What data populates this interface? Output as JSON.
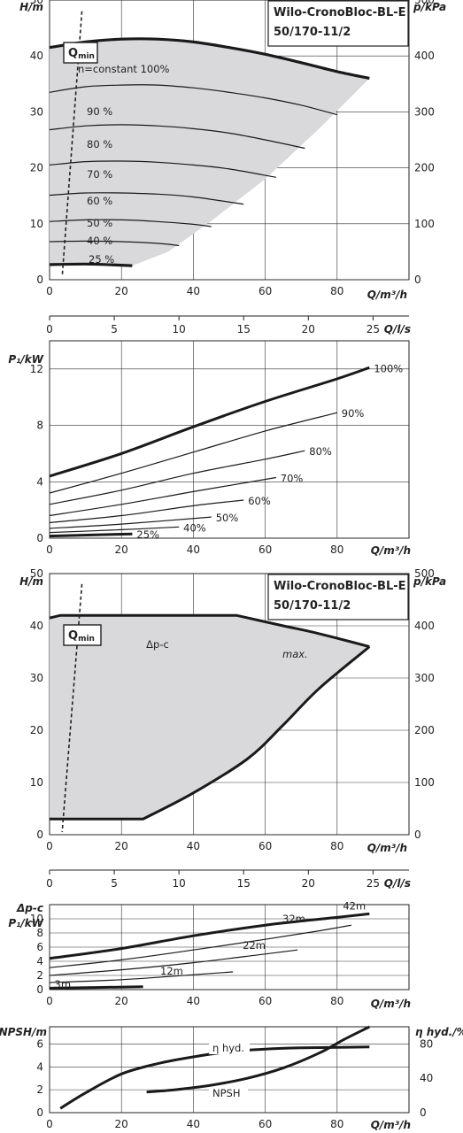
{
  "chart_data": [
    {
      "type": "line",
      "title": "Wilo-CronoBloc-BL-E",
      "subtitle": "50/170-11/2",
      "xlabel": "Q/m³/h",
      "ylabel": "H/m",
      "y2label": "p/kPa",
      "xlim": [
        0,
        100
      ],
      "ylim": [
        0,
        50
      ],
      "y2lim": [
        0,
        500
      ],
      "xticks": [
        "0",
        "20",
        "40",
        "60",
        "80"
      ],
      "yticks": [
        "0",
        "10",
        "20",
        "30",
        "40",
        "50"
      ],
      "y2ticks": [
        "0",
        "100",
        "200",
        "300",
        "400",
        "500"
      ],
      "qmin_label": "Q",
      "qmin_sub": "min",
      "top_label": "n=constant 100%",
      "grid": true,
      "series": [
        {
          "name": "100%",
          "x": [
            0,
            10,
            20,
            30,
            40,
            50,
            60,
            70,
            80,
            89
          ],
          "values": [
            41.5,
            42.5,
            43.0,
            43.0,
            42.5,
            41.5,
            40.3,
            38.8,
            37.2,
            36.0
          ]
        },
        {
          "name": "90 %",
          "x": [
            0,
            10,
            20,
            30,
            40,
            50,
            60,
            70,
            80
          ],
          "values": [
            33.5,
            34.5,
            34.8,
            34.8,
            34.3,
            33.5,
            32.5,
            31.2,
            29.5
          ]
        },
        {
          "name": "80 %",
          "x": [
            0,
            10,
            20,
            30,
            40,
            50,
            60,
            71
          ],
          "values": [
            26.8,
            27.5,
            27.7,
            27.5,
            27.0,
            26.2,
            25.0,
            23.5
          ]
        },
        {
          "name": "70 %",
          "x": [
            0,
            10,
            20,
            30,
            40,
            50,
            63
          ],
          "values": [
            20.5,
            21.1,
            21.2,
            21.0,
            20.5,
            19.8,
            18.3
          ]
        },
        {
          "name": "60 %",
          "x": [
            0,
            10,
            20,
            30,
            40,
            54
          ],
          "values": [
            15.1,
            15.5,
            15.5,
            15.3,
            14.8,
            13.5
          ]
        },
        {
          "name": "50 %",
          "x": [
            0,
            10,
            20,
            30,
            40,
            45
          ],
          "values": [
            10.4,
            10.7,
            10.7,
            10.4,
            9.9,
            9.5
          ]
        },
        {
          "name": "40 %",
          "x": [
            0,
            10,
            20,
            30,
            36
          ],
          "values": [
            6.8,
            6.9,
            6.8,
            6.5,
            6.1
          ]
        },
        {
          "name": "25 %",
          "x": [
            0,
            10,
            20,
            23
          ],
          "values": [
            2.7,
            2.8,
            2.6,
            2.5
          ]
        }
      ],
      "qmin_line": {
        "x": [
          9,
          3.5
        ],
        "values": [
          48,
          0.5
        ]
      }
    },
    {
      "type": "line",
      "xlabel": "Q/l/s",
      "xlim": [
        0,
        27.78
      ],
      "xticks": [
        "0",
        "5",
        "10",
        "15",
        "20",
        "25"
      ],
      "series": []
    },
    {
      "type": "line",
      "ylabel": "P₁/kW",
      "xlabel": "Q/m³/h",
      "xlim": [
        0,
        100
      ],
      "ylim": [
        0,
        14
      ],
      "xticks": [
        "0",
        "20",
        "40",
        "60",
        "80"
      ],
      "yticks": [
        "0",
        "4",
        "8",
        "12"
      ],
      "grid": true,
      "series": [
        {
          "name": "100%",
          "x": [
            0,
            20,
            40,
            60,
            80,
            89
          ],
          "values": [
            4.4,
            6.0,
            7.9,
            9.7,
            11.3,
            12.1
          ]
        },
        {
          "name": "90%",
          "x": [
            0,
            20,
            40,
            60,
            80
          ],
          "values": [
            3.2,
            4.6,
            6.1,
            7.6,
            8.9
          ]
        },
        {
          "name": "80%",
          "x": [
            0,
            20,
            40,
            60,
            71
          ],
          "values": [
            2.4,
            3.4,
            4.6,
            5.6,
            6.2
          ]
        },
        {
          "name": "70%",
          "x": [
            0,
            20,
            40,
            63
          ],
          "values": [
            1.6,
            2.4,
            3.3,
            4.3
          ]
        },
        {
          "name": "60%",
          "x": [
            0,
            20,
            40,
            54
          ],
          "values": [
            1.1,
            1.6,
            2.3,
            2.7
          ]
        },
        {
          "name": "50%",
          "x": [
            0,
            20,
            45
          ],
          "values": [
            0.7,
            1.0,
            1.5
          ]
        },
        {
          "name": "40%",
          "x": [
            0,
            20,
            36
          ],
          "values": [
            0.4,
            0.6,
            0.8
          ]
        },
        {
          "name": "25%",
          "x": [
            0,
            23
          ],
          "values": [
            0.15,
            0.3
          ]
        }
      ]
    },
    {
      "type": "area",
      "title": "Wilo-CronoBloc-BL-E",
      "subtitle": "50/170-11/2",
      "xlabel": "Q/m³/h",
      "ylabel": "H/m",
      "y2label": "p/kPa",
      "xlim": [
        0,
        100
      ],
      "ylim": [
        0,
        50
      ],
      "y2lim": [
        0,
        500
      ],
      "xticks": [
        "0",
        "20",
        "40",
        "60",
        "80"
      ],
      "yticks": [
        "0",
        "10",
        "20",
        "30",
        "40",
        "50"
      ],
      "y2ticks": [
        "0",
        "100",
        "200",
        "300",
        "400",
        "500"
      ],
      "qmin_label": "Q",
      "qmin_sub": "min",
      "annotations": [
        "Δp-c",
        "max."
      ],
      "grid": true,
      "series": [
        {
          "name": "Δp-c",
          "x": [
            0,
            3,
            52,
            65,
            75,
            89
          ],
          "values": [
            41.5,
            42,
            42,
            40,
            38.5,
            36
          ]
        },
        {
          "name": "min",
          "x": [
            0,
            26,
            40,
            55,
            65,
            75,
            89
          ],
          "values": [
            3,
            3,
            8,
            14.5,
            21,
            28,
            36
          ]
        }
      ],
      "qmin_line": {
        "x": [
          9,
          3.5
        ],
        "values": [
          48,
          0.5
        ]
      }
    },
    {
      "type": "line",
      "xlabel": "Q/l/s",
      "xlim": [
        0,
        27.78
      ],
      "xticks": [
        "0",
        "5",
        "10",
        "15",
        "20",
        "25"
      ],
      "series": []
    },
    {
      "type": "line",
      "ylabel": "Δp-c",
      "ylabel2": "P₁/kW",
      "xlabel": "Q/m³/h",
      "xlim": [
        0,
        100
      ],
      "ylim": [
        0,
        12
      ],
      "xticks": [
        "0",
        "20",
        "40",
        "60",
        "80"
      ],
      "yticks": [
        "0",
        "2",
        "4",
        "6",
        "8",
        "10"
      ],
      "grid": true,
      "series": [
        {
          "name": "42m",
          "x": [
            0,
            20,
            40,
            60,
            80,
            89
          ],
          "values": [
            4.4,
            5.8,
            7.6,
            9.1,
            10.2,
            10.7
          ]
        },
        {
          "name": "32m",
          "x": [
            0,
            20,
            40,
            60,
            75,
            84
          ],
          "values": [
            3.1,
            4.2,
            5.6,
            7.1,
            8.3,
            9.1
          ]
        },
        {
          "name": "22m",
          "x": [
            0,
            20,
            40,
            58,
            69
          ],
          "values": [
            2.0,
            2.8,
            3.8,
            4.9,
            5.6
          ]
        },
        {
          "name": "12m",
          "x": [
            0,
            20,
            40,
            51
          ],
          "values": [
            1.0,
            1.4,
            2.1,
            2.5
          ]
        },
        {
          "name": "3m",
          "x": [
            0,
            26
          ],
          "values": [
            0.2,
            0.4
          ]
        }
      ]
    },
    {
      "type": "line",
      "ylabel": "NPSH/m",
      "y2label": "η hyd./%",
      "xlabel": "Q/m³/h",
      "xlim": [
        0,
        100
      ],
      "ylim": [
        0,
        7.5
      ],
      "y2lim": [
        0,
        100
      ],
      "xticks": [
        "0",
        "20",
        "40",
        "60",
        "80"
      ],
      "yticks": [
        "0",
        "2",
        "4",
        "6"
      ],
      "y2ticks": [
        "0",
        "40",
        "80"
      ],
      "grid": true,
      "series": [
        {
          "name": "η hyd.",
          "axis": "right",
          "x": [
            3,
            10,
            20,
            30,
            40,
            50,
            60,
            70,
            80,
            89
          ],
          "values": [
            5,
            23,
            45,
            57,
            65,
            71,
            74,
            75.5,
            76,
            76.5
          ]
        },
        {
          "name": "NPSH",
          "axis": "left",
          "x": [
            27,
            35,
            45,
            55,
            65,
            75,
            82,
            89
          ],
          "values": [
            1.8,
            2.0,
            2.4,
            3.0,
            3.9,
            5.2,
            6.4,
            7.5
          ]
        }
      ]
    }
  ]
}
